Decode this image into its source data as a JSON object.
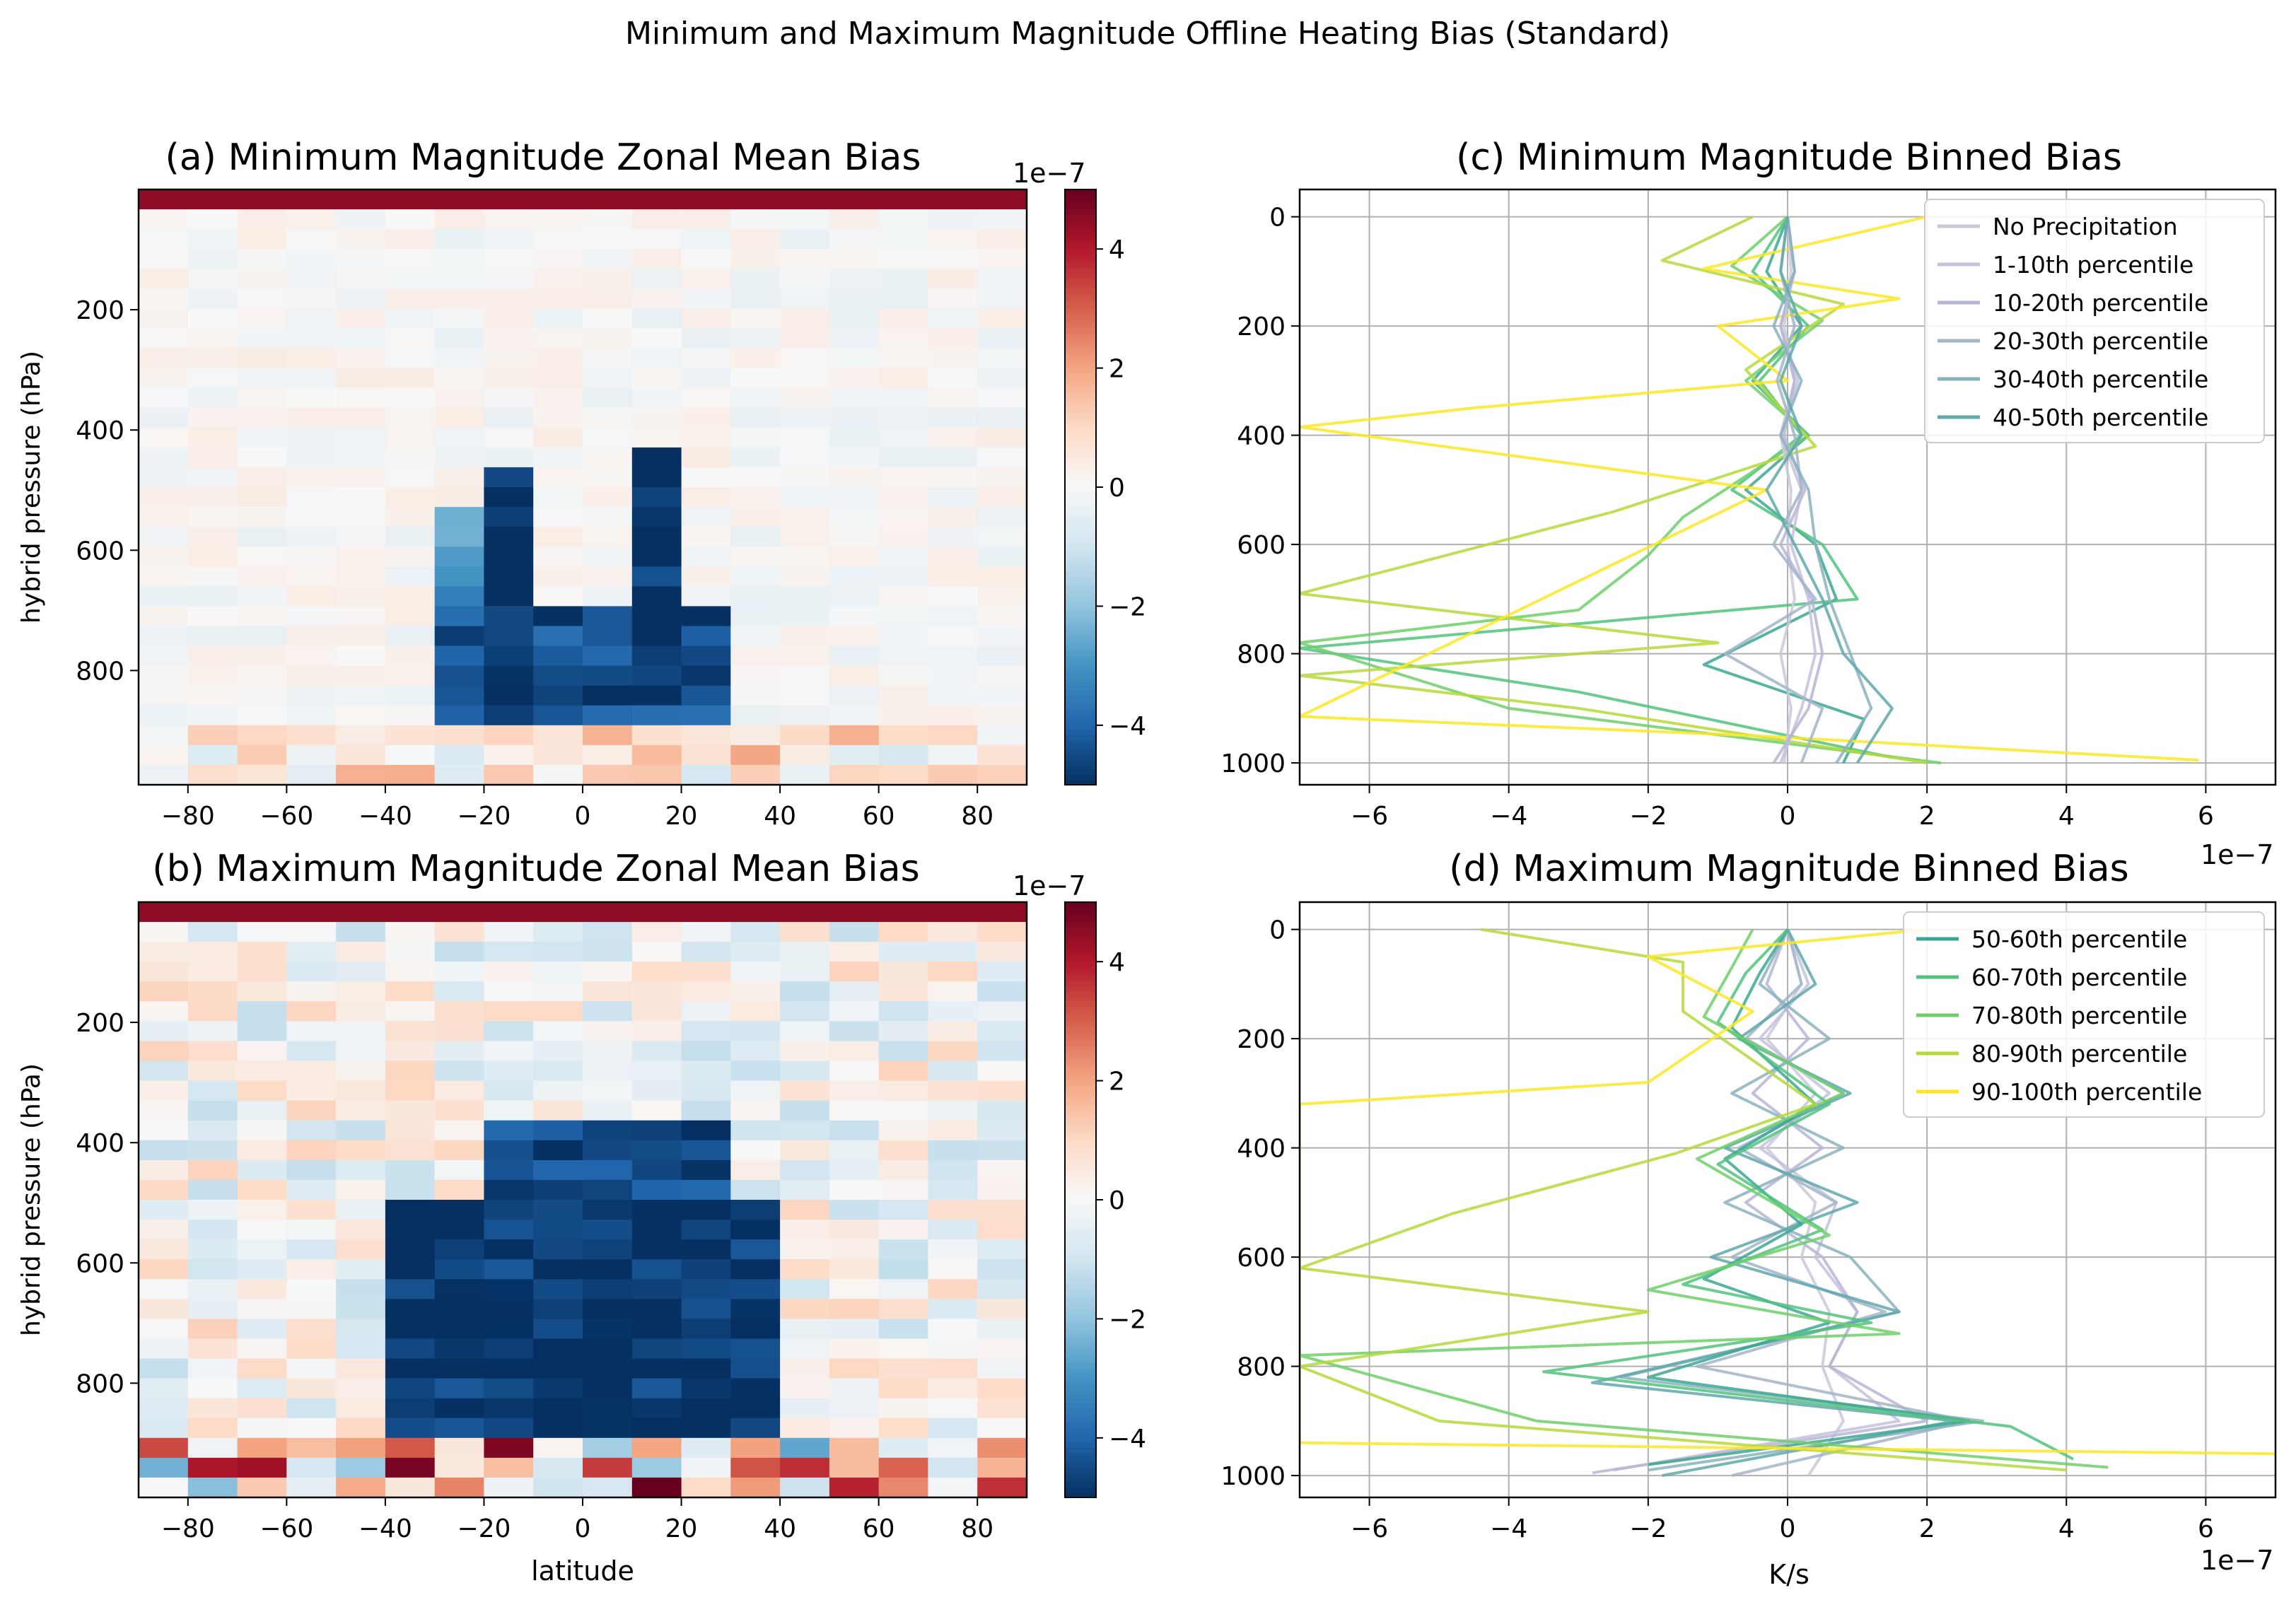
{
  "figure": {
    "suptitle": "Minimum and Maximum Magnitude Offline Heating Bias (Standard)"
  },
  "colors": {
    "no_precip": "#c9c9d9",
    "p1_10": "#c4c2dc",
    "p10_20": "#b7b5d6",
    "p20_30": "#a3b5c8",
    "p30_40": "#8ab3bd",
    "p40_50": "#5fa8ad",
    "p50_60": "#3aa891",
    "p60_70": "#50c37d",
    "p70_80": "#6ecf6a",
    "p80_90": "#b5d93a",
    "p90_100": "#fde725",
    "cmap_neg": "#053061",
    "cmap_mid": "#f7f7f7",
    "cmap_pos": "#67001f"
  },
  "chart_data": [
    {
      "id": "a",
      "type": "heatmap",
      "title": "(a) Minimum Magnitude Zonal Mean Bias",
      "xlabel": "",
      "ylabel": "hybrid pressure (hPa)",
      "xlim": [
        -90,
        90
      ],
      "ylim": [
        990,
        0
      ],
      "invert_y": true,
      "xticks": [
        "−80",
        "−60",
        "−40",
        "−20",
        "0",
        "20",
        "40",
        "60",
        "80"
      ],
      "yticks": [
        "200",
        "400",
        "600",
        "800"
      ],
      "colorbar": {
        "label": "1e−7",
        "ticks": [
          "4",
          "2",
          "0",
          "−2",
          "−4"
        ],
        "vmin": -5,
        "vmax": 5,
        "cmap": "RdBu_r"
      },
      "lat_bins": [
        -90,
        -80,
        -70,
        -60,
        -50,
        -40,
        -30,
        -20,
        -10,
        0,
        10,
        20,
        30,
        40,
        50,
        60,
        70,
        80,
        90
      ],
      "features": [
        {
          "lat": [
            -30,
            30
          ],
          "p": [
            700,
            880
          ],
          "value": -4.5
        },
        {
          "lat": [
            -20,
            -10
          ],
          "p": [
            450,
            880
          ],
          "value": -5
        },
        {
          "lat": [
            10,
            20
          ],
          "p": [
            440,
            870
          ],
          "value": -5
        },
        {
          "lat": [
            -30,
            -20
          ],
          "p": [
            520,
            700
          ],
          "value": -3
        }
      ]
    },
    {
      "id": "b",
      "type": "heatmap",
      "title": "(b) Maximum Magnitude Zonal Mean Bias",
      "xlabel": "latitude",
      "ylabel": "hybrid pressure (hPa)",
      "xlim": [
        -90,
        90
      ],
      "ylim": [
        990,
        0
      ],
      "invert_y": true,
      "xticks": [
        "−80",
        "−60",
        "−40",
        "−20",
        "0",
        "20",
        "40",
        "60",
        "80"
      ],
      "yticks": [
        "200",
        "400",
        "600",
        "800"
      ],
      "colorbar": {
        "label": "1e−7",
        "ticks": [
          "4",
          "2",
          "0",
          "−2",
          "−4"
        ],
        "vmin": -5,
        "vmax": 5,
        "cmap": "RdBu_r"
      },
      "lat_bins": [
        -90,
        -80,
        -70,
        -60,
        -50,
        -40,
        -30,
        -20,
        -10,
        0,
        10,
        20,
        30,
        40,
        50,
        60,
        70,
        80,
        90
      ],
      "features": [
        {
          "lat": [
            -40,
            40
          ],
          "p": [
            500,
            900
          ],
          "value": -5
        },
        {
          "lat": [
            -20,
            30
          ],
          "p": [
            350,
            500
          ],
          "value": -4.5
        }
      ]
    },
    {
      "id": "c",
      "type": "line",
      "title": "(c) Minimum Magnitude Binned Bias",
      "xlabel": "",
      "ylabel": "",
      "xlim": [
        -7,
        7
      ],
      "x_scale_label": "1e−7",
      "ylim": [
        1040,
        -50
      ],
      "invert_y": true,
      "xticks": [
        {
          "v": -6,
          "t": "−6"
        },
        {
          "v": -4,
          "t": "−4"
        },
        {
          "v": -2,
          "t": "−2"
        },
        {
          "v": 0,
          "t": "0"
        },
        {
          "v": 2,
          "t": "2"
        },
        {
          "v": 4,
          "t": "4"
        },
        {
          "v": 6,
          "t": "6"
        }
      ],
      "yticks": [
        {
          "v": 0,
          "t": "0"
        },
        {
          "v": 200,
          "t": "200"
        },
        {
          "v": 400,
          "t": "400"
        },
        {
          "v": 600,
          "t": "600"
        },
        {
          "v": 800,
          "t": "800"
        },
        {
          "v": 1000,
          "t": "1000"
        }
      ],
      "grid": true,
      "legend_position": "top-right",
      "series": [
        {
          "name": "No Precipitation",
          "color": "#c9c9d9",
          "x": [
            0,
            0.05,
            -0.05,
            0.1,
            -0.1,
            0.05,
            0,
            0.1,
            -0.1,
            0.05,
            -0.05
          ],
          "y": [
            0,
            100,
            200,
            300,
            400,
            500,
            600,
            700,
            800,
            900,
            1000
          ]
        },
        {
          "name": "1-10th percentile",
          "color": "#c4c2dc",
          "x": [
            0,
            0.1,
            -0.1,
            0.15,
            -0.1,
            0.2,
            0.05,
            0.3,
            0.4,
            0.2,
            -0.1
          ],
          "y": [
            0,
            100,
            200,
            300,
            400,
            500,
            600,
            700,
            800,
            900,
            1000
          ]
        },
        {
          "name": "10-20th percentile",
          "color": "#b7b5d6",
          "x": [
            0,
            0.1,
            -0.1,
            0.1,
            -0.05,
            0.25,
            -0.1,
            0.35,
            0.5,
            0.3,
            -0.2
          ],
          "y": [
            0,
            100,
            200,
            300,
            400,
            500,
            600,
            700,
            800,
            900,
            1000
          ]
        },
        {
          "name": "20-30th percentile",
          "color": "#a3b5c8",
          "x": [
            0,
            -0.1,
            0.1,
            -0.15,
            0.1,
            0.2,
            -0.2,
            0.4,
            -0.9,
            0.5,
            0.2
          ],
          "y": [
            0,
            100,
            200,
            300,
            400,
            500,
            600,
            700,
            800,
            900,
            1000
          ]
        },
        {
          "name": "30-40th percentile",
          "color": "#8ab3bd",
          "x": [
            0,
            0.1,
            -0.2,
            0.2,
            -0.1,
            0.3,
            0.4,
            0.6,
            0.9,
            1.2,
            0.7
          ],
          "y": [
            0,
            100,
            200,
            300,
            400,
            500,
            600,
            700,
            800,
            900,
            1000
          ]
        },
        {
          "name": "40-50th percentile",
          "color": "#5fa8ad",
          "x": [
            0,
            -0.1,
            0.2,
            -0.1,
            0.2,
            -0.3,
            0.1,
            0.5,
            0.8,
            1.5,
            1.0
          ],
          "y": [
            0,
            100,
            200,
            300,
            400,
            500,
            600,
            700,
            800,
            900,
            1000
          ]
        }
      ],
      "extra_series": [
        {
          "name": "50-60th",
          "color": "#3aa891",
          "x": [
            0,
            -0.3,
            0.2,
            -0.5,
            0.3,
            -0.6,
            0.4,
            0.7,
            -1.2,
            1.1,
            0.8
          ],
          "y": [
            0,
            100,
            200,
            300,
            400,
            500,
            600,
            700,
            820,
            920,
            1000
          ]
        },
        {
          "name": "60-70th",
          "color": "#50c37d",
          "x": [
            0,
            -0.5,
            0.3,
            -0.4,
            0.2,
            -0.8,
            0.5,
            1.0,
            -7,
            -3,
            1.5
          ],
          "y": [
            0,
            100,
            200,
            300,
            400,
            500,
            600,
            700,
            790,
            870,
            990
          ]
        },
        {
          "name": "70-80th",
          "color": "#6ecf6a",
          "x": [
            0,
            -0.8,
            0.5,
            -0.6,
            0.3,
            -1.5,
            -2,
            -3,
            -7,
            -4,
            2.2
          ],
          "y": [
            0,
            90,
            190,
            300,
            400,
            550,
            620,
            720,
            780,
            900,
            1000
          ]
        },
        {
          "name": "80-90th",
          "color": "#b5d93a",
          "x": [
            -0.5,
            -1.8,
            0.8,
            -0.6,
            0.4,
            -2.5,
            -7,
            -1,
            -7,
            -3,
            2
          ],
          "y": [
            0,
            80,
            160,
            280,
            420,
            540,
            690,
            780,
            840,
            900,
            1000
          ]
        },
        {
          "name": "90-100th",
          "color": "#fde725",
          "x": [
            2,
            -1.2,
            1.6,
            -1,
            0,
            -4.5,
            -7,
            -0.3,
            -7,
            -0.5,
            5.9
          ],
          "y": [
            0,
            95,
            150,
            200,
            300,
            350,
            385,
            500,
            915,
            950,
            995
          ]
        }
      ]
    },
    {
      "id": "d",
      "type": "line",
      "title": "(d) Maximum Magnitude Binned Bias",
      "xlabel": "K/s",
      "ylabel": "",
      "xlim": [
        -7,
        7
      ],
      "x_scale_label": "1e−7",
      "ylim": [
        1040,
        -50
      ],
      "invert_y": true,
      "xticks": [
        {
          "v": -6,
          "t": "−6"
        },
        {
          "v": -4,
          "t": "−4"
        },
        {
          "v": -2,
          "t": "−2"
        },
        {
          "v": 0,
          "t": "0"
        },
        {
          "v": 2,
          "t": "2"
        },
        {
          "v": 4,
          "t": "4"
        },
        {
          "v": 6,
          "t": "6"
        }
      ],
      "yticks": [
        {
          "v": 0,
          "t": "0"
        },
        {
          "v": 200,
          "t": "200"
        },
        {
          "v": 400,
          "t": "400"
        },
        {
          "v": 600,
          "t": "600"
        },
        {
          "v": 800,
          "t": "800"
        },
        {
          "v": 1000,
          "t": "1000"
        }
      ],
      "grid": true,
      "legend_position": "top-right",
      "series": [
        {
          "name": "50-60th percentile",
          "color": "#3aa891",
          "x": [
            0,
            -0.4,
            -0.8,
            0.4,
            -0.9,
            0.2,
            -1.2,
            0.6,
            -2,
            2.6,
            -2
          ],
          "y": [
            0,
            80,
            180,
            320,
            420,
            540,
            640,
            720,
            820,
            900,
            980
          ]
        },
        {
          "name": "60-70th percentile",
          "color": "#50c37d",
          "x": [
            0,
            -0.6,
            -1,
            0.6,
            -1,
            0.5,
            -1.5,
            1.2,
            -3.5,
            3.2,
            4.1
          ],
          "y": [
            0,
            80,
            170,
            320,
            430,
            550,
            650,
            720,
            810,
            910,
            970
          ]
        },
        {
          "name": "70-80th percentile",
          "color": "#6ecf6a",
          "x": [
            -0.5,
            -0.8,
            -1.2,
            0.8,
            -1.3,
            0.6,
            -2,
            1.6,
            -7,
            -3.6,
            4.6
          ],
          "y": [
            0,
            70,
            160,
            300,
            420,
            560,
            660,
            740,
            780,
            900,
            985
          ]
        },
        {
          "name": "80-90th percentile",
          "color": "#b5d93a",
          "x": [
            -4.4,
            -1.5,
            -1.5,
            0.4,
            -1.6,
            -4.8,
            -7,
            -2,
            -7,
            -5,
            4
          ],
          "y": [
            0,
            60,
            150,
            320,
            410,
            520,
            620,
            700,
            800,
            900,
            990
          ]
        },
        {
          "name": "90-100th percentile",
          "color": "#fde725",
          "x": [
            2,
            -2,
            -0.5,
            -2,
            -7,
            -7,
            -7,
            -7,
            -7,
            -7,
            7
          ],
          "y": [
            0,
            50,
            150,
            280,
            320,
            500,
            700,
            800,
            900,
            940,
            960
          ]
        }
      ],
      "extra_series": [
        {
          "name": "No Precipitation",
          "color": "#c9c9d9",
          "x": [
            0,
            0.2,
            -0.3,
            0.4,
            -0.3,
            0.4,
            0.2,
            0.6,
            0.5,
            0.8,
            0.3
          ],
          "y": [
            0,
            100,
            200,
            300,
            400,
            500,
            600,
            700,
            800,
            900,
            1000
          ]
        },
        {
          "name": "1-10th",
          "color": "#c4c2dc",
          "x": [
            0,
            0.3,
            -0.4,
            0.6,
            -0.4,
            0.7,
            0.4,
            1.0,
            0.6,
            1.6,
            -2.5
          ],
          "y": [
            0,
            100,
            200,
            300,
            400,
            500,
            600,
            700,
            800,
            900,
            990
          ]
        },
        {
          "name": "10-20th",
          "color": "#b7b5d6",
          "x": [
            0,
            -0.3,
            0.3,
            -0.5,
            0.5,
            -0.6,
            0.5,
            1.0,
            0.6,
            2.0,
            -2.8
          ],
          "y": [
            0,
            100,
            200,
            300,
            400,
            500,
            600,
            700,
            800,
            900,
            995
          ]
        },
        {
          "name": "20-30th",
          "color": "#a3b5c8",
          "x": [
            0,
            0.2,
            -0.6,
            0.8,
            -0.7,
            0.7,
            -0.8,
            1.4,
            -1.3,
            2.6,
            -0.8
          ],
          "y": [
            0,
            100,
            200,
            300,
            400,
            500,
            600,
            700,
            800,
            900,
            1000
          ]
        },
        {
          "name": "30-40th",
          "color": "#8ab3bd",
          "x": [
            0,
            -0.4,
            0.6,
            -0.8,
            0.8,
            -0.9,
            0.9,
            1.6,
            -2.4,
            2.8,
            -2
          ],
          "y": [
            0,
            100,
            200,
            300,
            400,
            500,
            600,
            700,
            820,
            900,
            990
          ]
        },
        {
          "name": "40-50th",
          "color": "#5fa8ad",
          "x": [
            0,
            0.4,
            -0.7,
            0.9,
            -0.9,
            1,
            -1.1,
            1.6,
            -2.8,
            2.4,
            -1.8
          ],
          "y": [
            0,
            100,
            200,
            300,
            400,
            500,
            600,
            700,
            830,
            900,
            1000
          ]
        }
      ]
    }
  ]
}
